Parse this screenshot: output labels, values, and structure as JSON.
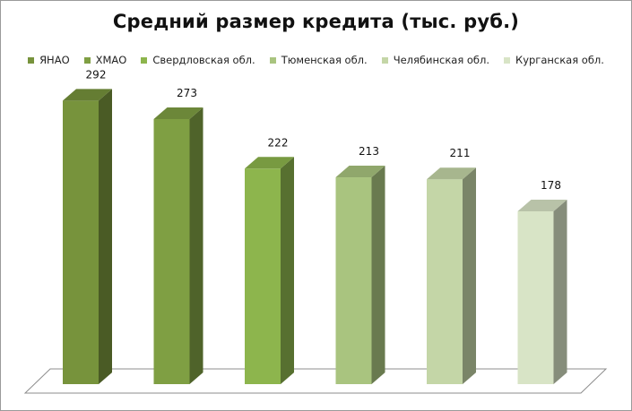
{
  "chart_data": {
    "type": "bar",
    "title": "Средний размер кредита (тыс. руб.)",
    "categories": [
      "ЯНАО",
      "ХМАО",
      "Свердловская обл.",
      "Тюменская обл.",
      "Челябинская обл.",
      "Курганская обл."
    ],
    "values": [
      292,
      273,
      222,
      213,
      211,
      178
    ],
    "colors": [
      "#77933c",
      "#7f9f43",
      "#8db54d",
      "#a9c47f",
      "#c4d6a7",
      "#d8e4c6"
    ],
    "ylim": [
      0,
      320
    ],
    "legend_position": "top",
    "grid": false,
    "three_d": true
  }
}
